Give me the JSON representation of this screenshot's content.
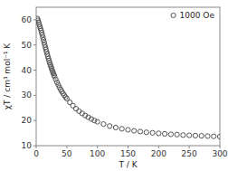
{
  "chart_data": {
    "type": "scatter",
    "xlabel": "T / K",
    "ylabel": "χT / cm³ mol⁻¹ K",
    "x": [
      2,
      3,
      4,
      5,
      6,
      7,
      8,
      9,
      10,
      11,
      12,
      13,
      14,
      15,
      16,
      17,
      18,
      19,
      20,
      21,
      22,
      23,
      24,
      25,
      26,
      27,
      28,
      29,
      30,
      32,
      34,
      36,
      38,
      40,
      42,
      44,
      46,
      48,
      50,
      55,
      60,
      65,
      70,
      75,
      80,
      85,
      90,
      95,
      100,
      110,
      120,
      130,
      140,
      150,
      160,
      170,
      180,
      190,
      200,
      210,
      220,
      230,
      240,
      250,
      260,
      270,
      280,
      290,
      300
    ],
    "series": [
      {
        "name": "1000 Oe",
        "color": "#555555",
        "marker": "circle",
        "values": [
          60.5,
          59.8,
          59.0,
          58.2,
          57.4,
          56.6,
          55.8,
          54.9,
          54.0,
          53.0,
          52.0,
          51.0,
          50.0,
          49.1,
          48.2,
          47.3,
          46.4,
          45.5,
          44.6,
          43.8,
          43.0,
          42.2,
          41.5,
          40.8,
          40.1,
          39.4,
          38.7,
          38.1,
          37.5,
          36.3,
          35.2,
          34.2,
          33.2,
          32.3,
          31.5,
          30.7,
          30.0,
          29.3,
          28.7,
          27.2,
          25.9,
          24.7,
          23.7,
          22.8,
          22.0,
          21.3,
          20.6,
          20.0,
          19.5,
          18.6,
          17.8,
          17.2,
          16.7,
          16.3,
          15.9,
          15.6,
          15.3,
          15.1,
          14.9,
          14.7,
          14.5,
          14.4,
          14.2,
          14.1,
          14.0,
          13.9,
          13.8,
          13.7,
          13.6
        ]
      }
    ],
    "xlim": [
      0,
      300
    ],
    "ylim": [
      10,
      65
    ],
    "xticks": [
      0,
      50,
      100,
      150,
      200,
      250,
      300
    ],
    "yticks": [
      10,
      20,
      30,
      40,
      50,
      60
    ],
    "grid": false,
    "legend": "upper right"
  }
}
